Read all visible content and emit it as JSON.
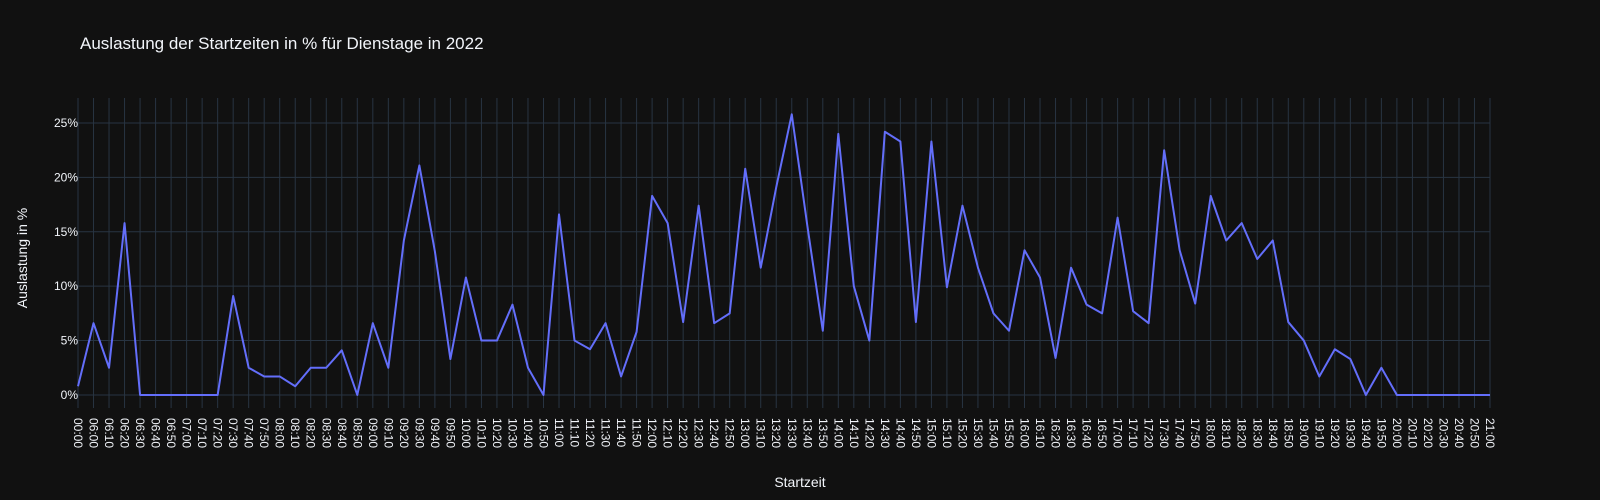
{
  "chart_data": {
    "type": "line",
    "title": "Auslastung der Startzeiten in % für Dienstage in 2022",
    "xlabel": "Startzeit",
    "ylabel": "Auslastung in %",
    "ylim": [
      -1.2,
      27.3
    ],
    "y_ticks": [
      0,
      5,
      10,
      15,
      20,
      25
    ],
    "y_tick_labels": [
      "0%",
      "5%",
      "10%",
      "15%",
      "20%",
      "25%"
    ],
    "grid": true,
    "line_color": "#636efa",
    "background_color": "#111111",
    "grid_color": "#283442",
    "text_color": "#f2f5fa",
    "x": [
      "00:00",
      "06:00",
      "06:10",
      "06:20",
      "06:30",
      "06:40",
      "06:50",
      "07:00",
      "07:10",
      "07:20",
      "07:30",
      "07:40",
      "07:50",
      "08:00",
      "08:10",
      "08:20",
      "08:30",
      "08:40",
      "08:50",
      "09:00",
      "09:10",
      "09:20",
      "09:30",
      "09:40",
      "09:50",
      "10:00",
      "10:10",
      "10:20",
      "10:30",
      "10:40",
      "10:50",
      "11:00",
      "11:10",
      "11:20",
      "11:30",
      "11:40",
      "11:50",
      "12:00",
      "12:10",
      "12:20",
      "12:30",
      "12:40",
      "12:50",
      "13:00",
      "13:10",
      "13:20",
      "13:30",
      "13:40",
      "13:50",
      "14:00",
      "14:10",
      "14:20",
      "14:30",
      "14:40",
      "14:50",
      "15:00",
      "15:10",
      "15:20",
      "15:30",
      "15:40",
      "15:50",
      "16:00",
      "16:10",
      "16:20",
      "16:30",
      "16:40",
      "16:50",
      "17:00",
      "17:10",
      "17:20",
      "17:30",
      "17:40",
      "17:50",
      "18:00",
      "18:10",
      "18:20",
      "18:30",
      "18:40",
      "18:50",
      "19:00",
      "19:10",
      "19:20",
      "19:30",
      "19:40",
      "19:50",
      "20:00",
      "20:10",
      "20:20",
      "20:30",
      "20:40",
      "20:50",
      "21:00"
    ],
    "values": [
      0.8,
      6.6,
      2.5,
      15.8,
      0,
      0,
      0,
      0,
      0,
      0,
      9.1,
      2.5,
      1.7,
      1.7,
      0.8,
      2.5,
      2.5,
      4.1,
      0,
      6.6,
      2.5,
      14.2,
      21.1,
      13.2,
      3.3,
      10.8,
      5.0,
      5.0,
      8.3,
      2.5,
      0,
      16.6,
      5.0,
      4.2,
      6.6,
      1.7,
      5.8,
      18.3,
      15.8,
      6.7,
      17.4,
      6.6,
      7.5,
      20.8,
      11.7,
      19.1,
      25.8,
      15.6,
      5.9,
      24.0,
      10.0,
      5.0,
      24.2,
      23.3,
      6.7,
      23.3,
      9.9,
      17.4,
      11.7,
      7.5,
      5.9,
      13.3,
      10.8,
      3.4,
      11.7,
      8.3,
      7.5,
      16.3,
      7.7,
      6.6,
      22.5,
      13.3,
      8.4,
      18.3,
      14.2,
      15.8,
      12.5,
      14.2,
      6.7,
      5.0,
      1.7,
      4.2,
      3.3,
      0,
      2.5,
      0,
      0,
      0,
      0,
      0,
      0,
      0
    ]
  }
}
